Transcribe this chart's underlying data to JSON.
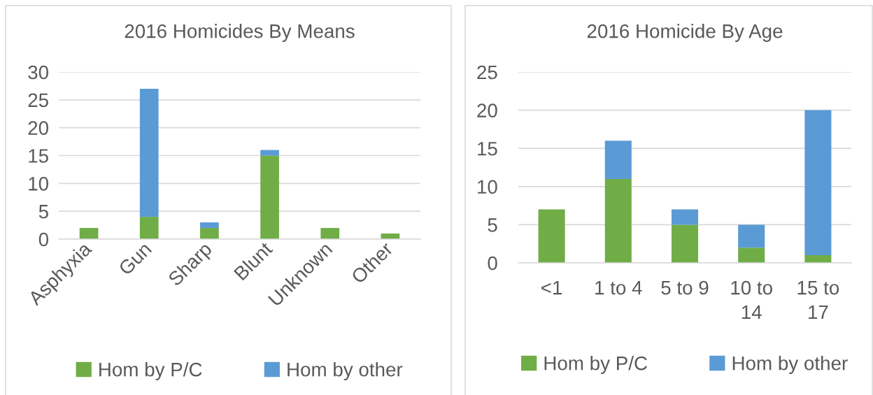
{
  "chart_data": [
    {
      "type": "bar",
      "title": "2016 Homicides By Means",
      "categories": [
        "Asphyxia",
        "Gun",
        "Sharp",
        "Blunt",
        "Unknown",
        "Other"
      ],
      "stacked": true,
      "series": [
        {
          "name": "Hom by P/C",
          "color": "#70ad47",
          "values": [
            2,
            4,
            2,
            15,
            2,
            1
          ]
        },
        {
          "name": "Hom by other",
          "color": "#5b9bd5",
          "values": [
            null,
            23,
            1,
            1,
            null,
            null
          ]
        }
      ],
      "ylim": [
        0,
        30
      ],
      "yticks": [
        0,
        5,
        10,
        15,
        20,
        25,
        30
      ],
      "grid": "y",
      "legend": "bottom"
    },
    {
      "type": "bar",
      "title": "2016 Homicide By Age",
      "categories": [
        "<1",
        "1 to 4",
        "5 to 9",
        "10 to 14",
        "15 to 17"
      ],
      "stacked": true,
      "series": [
        {
          "name": "Hom by P/C",
          "color": "#70ad47",
          "values": [
            7,
            11,
            5,
            2,
            1
          ]
        },
        {
          "name": "Hom by other",
          "color": "#5b9bd5",
          "values": [
            null,
            5,
            2,
            3,
            19
          ]
        }
      ],
      "ylim": [
        0,
        25
      ],
      "yticks": [
        0,
        5,
        10,
        15,
        20,
        25
      ],
      "grid": "y",
      "legend": "bottom"
    }
  ]
}
